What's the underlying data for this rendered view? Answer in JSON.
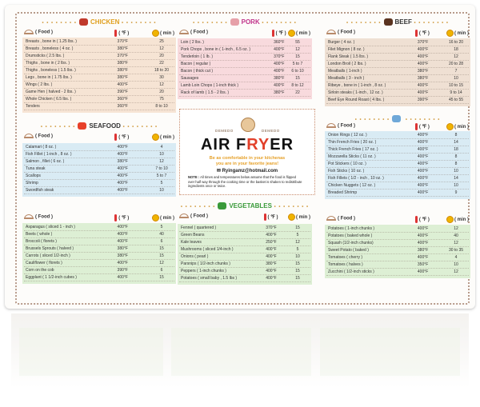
{
  "center": {
    "brand_left": "DEMEDO",
    "brand_right": "DEMEDO",
    "title_a": "AIR F",
    "title_b": "RY",
    "title_c": "ER",
    "slogan_1": "Be as comfortable in your kitchenas",
    "slogan_2": "you are in your favorite jeans!",
    "email": "Ryingamz@hotmail.com",
    "note_label": "NOTE :",
    "note": "All times and temperatures below assume that the food is flipped over half way through the cooking time or the basket is shaken to redistribute ingredients once or twice."
  },
  "headers": {
    "food": "( Food )",
    "temp": "( ℉ )",
    "min": "( min )"
  },
  "sections": [
    {
      "title": "CHICKEN",
      "color": "#e0a020",
      "bg": "#f6e4d4",
      "rows": [
        {
          "food": "Breasts , bone in ( 1.25 lbs. )",
          "temp": "370°F",
          "min": "25"
        },
        {
          "food": "Breasts , boneless ( 4 oz. )",
          "temp": "380°F",
          "min": "12"
        },
        {
          "food": "Drumsticks ( 2.5 lbs. )",
          "temp": "370°F",
          "min": "20"
        },
        {
          "food": "Thighs , bone in ( 2 lbs. )",
          "temp": "380°F",
          "min": "22"
        },
        {
          "food": "Thighs , boneless ( 1.5 lbs. )",
          "temp": "380°F",
          "min": "18 to 20"
        },
        {
          "food": "Legs , bone in ( 1.75 lbs. )",
          "temp": "380°F",
          "min": "30"
        },
        {
          "food": "Wings ( 2 lbs. )",
          "temp": "400°F",
          "min": "12"
        },
        {
          "food": "Game Hen ( halved - 2 lbs. )",
          "temp": "390°F",
          "min": "20"
        },
        {
          "food": "Whole Chicken ( 6.5 lbs. )",
          "temp": "360°F",
          "min": "75"
        },
        {
          "food": "Tenders",
          "temp": "360°F",
          "min": "8 to 10"
        }
      ]
    },
    {
      "title": "PORK",
      "color": "#c0338a",
      "bg": "#f8dadd",
      "rows": [
        {
          "food": "Loin ( 2 lbs. )",
          "temp": "360°F",
          "min": "55"
        },
        {
          "food": "Pork Chops , bone in ( 1-inch , 6.5 oz. )",
          "temp": "400°F",
          "min": "12"
        },
        {
          "food": "Tenderloin ( 1 lb. )",
          "temp": "370°F",
          "min": "15"
        },
        {
          "food": "Bacon ( regular )",
          "temp": "400°F",
          "min": "5 to 7"
        },
        {
          "food": "Bacon ( thick cut )",
          "temp": "400°F",
          "min": "6 to 10"
        },
        {
          "food": "Sausages",
          "temp": "380°F",
          "min": "15"
        },
        {
          "food": "Lamb Loin Chops ( 1-inch thick )",
          "temp": "400°F",
          "min": "8 to 12"
        },
        {
          "food": "Rack of lamb ( 1.5 - 2 lbs. )",
          "temp": "380°F",
          "min": "22"
        }
      ]
    },
    {
      "title": "BEEF",
      "color": "#333333",
      "bg": "#efe0d3",
      "rows": [
        {
          "food": "Burger ( 4 oz. )",
          "temp": "370°F",
          "min": "16 to 20"
        },
        {
          "food": "Filet Mignon ( 8 oz. )",
          "temp": "400°F",
          "min": "18"
        },
        {
          "food": "Flank Steak ( 1.5 lbs. )",
          "temp": "400°F",
          "min": "12"
        },
        {
          "food": "London Broil ( 2 lbs. )",
          "temp": "400°F",
          "min": "20 to 28"
        },
        {
          "food": "Meatballs ( 1-inch )",
          "temp": "380°F",
          "min": "7"
        },
        {
          "food": "Meatballs ( 3 - inch )",
          "temp": "380°F",
          "min": "10"
        },
        {
          "food": "Ribeye , bone in ( 1-inch , 8 oz. )",
          "temp": "400°F",
          "min": "10 to 15"
        },
        {
          "food": "Sirloin steaks ( 1-inch , 12 oz. )",
          "temp": "400°F",
          "min": "9 to 14"
        },
        {
          "food": "Beef Eye Round Roast ( 4 lbs. )",
          "temp": "390°F",
          "min": "45 to 55"
        }
      ]
    },
    {
      "title": "SEAFOOD",
      "color": "#333333",
      "bg": "#d9ebf4",
      "rows": [
        {
          "food": "Calamari ( 8 oz. )",
          "temp": "400°F",
          "min": "4"
        },
        {
          "food": "Fish Fillet ( 1-inch , 8 oz. )",
          "temp": "400°F",
          "min": "10"
        },
        {
          "food": "Salmon , fillet ( 6 oz. )",
          "temp": "380°F",
          "min": "12"
        },
        {
          "food": "Tuna steak",
          "temp": "400°F",
          "min": "7 to 10"
        },
        {
          "food": "Scallops",
          "temp": "400°F",
          "min": "5 to 7"
        },
        {
          "food": "Shrimp",
          "temp": "400°F",
          "min": "5"
        },
        {
          "food": "Swordfish steak",
          "temp": "400°F",
          "min": "10"
        }
      ]
    },
    {
      "title": "",
      "color": "#333333",
      "bg": "#d9ebf4",
      "rows": [
        {
          "food": "Onion Rings ( 12 oz. )",
          "temp": "400°F",
          "min": "8"
        },
        {
          "food": "Thin French Fries ( 20 oz. )",
          "temp": "400°F",
          "min": "14"
        },
        {
          "food": "Thick French Fries ( 17 oz. )",
          "temp": "400°F",
          "min": "18"
        },
        {
          "food": "Mozzarella Sticks ( 11 oz. )",
          "temp": "400°F",
          "min": "8"
        },
        {
          "food": "Pot Stickers ( 10 oz. )",
          "temp": "400°F",
          "min": "8"
        },
        {
          "food": "Fish Sticks ( 10 oz. )",
          "temp": "400°F",
          "min": "10"
        },
        {
          "food": "Fish Fillets ( 1/2 - inch , 10 oz. )",
          "temp": "400°F",
          "min": "14"
        },
        {
          "food": "Chicken Nuggets ( 12 oz. )",
          "temp": "400°F",
          "min": "10"
        },
        {
          "food": "Breaded Shrimp",
          "temp": "400°F",
          "min": "9"
        }
      ]
    },
    {
      "title": "",
      "color": "#3a9a3a",
      "bg": "#ddefd4",
      "rows": [
        {
          "food": "Asparagus ( sliced 1 - inch )",
          "temp": "400°F",
          "min": "5"
        },
        {
          "food": "Beets ( whole )",
          "temp": "400°F",
          "min": "40"
        },
        {
          "food": "Broccoli ( florets )",
          "temp": "400°F",
          "min": "6"
        },
        {
          "food": "Brussels Sprouts ( halved )",
          "temp": "380°F",
          "min": "15"
        },
        {
          "food": "Carrots ( sliced 1/2-inch )",
          "temp": "380°F",
          "min": "15"
        },
        {
          "food": "Cauliflower ( florets )",
          "temp": "400°F",
          "min": "12"
        },
        {
          "food": "Corn on the cob",
          "temp": "390°F",
          "min": "6"
        },
        {
          "food": "Eggplant ( 1 1/2-inch cubes )",
          "temp": "400°F",
          "min": "15"
        }
      ]
    },
    {
      "title": "VEGETABLES",
      "color": "#3a9a3a",
      "bg": "#ddefd4",
      "rows": [
        {
          "food": "Fennel ( quartered )",
          "temp": "370°F",
          "min": "15"
        },
        {
          "food": "Green Beans",
          "temp": "400°F",
          "min": "5"
        },
        {
          "food": "Kale leaves",
          "temp": "250°F",
          "min": "12"
        },
        {
          "food": "Mushrooms ( sliced 1/4-inch )",
          "temp": "400°F",
          "min": "5"
        },
        {
          "food": "Onions ( pearl )",
          "temp": "400°F",
          "min": "10"
        },
        {
          "food": "Parsnips ( 1/2-inch chunks )",
          "temp": "380°F",
          "min": "15"
        },
        {
          "food": "Peppers ( 1-inch chunks )",
          "temp": "400°F",
          "min": "15"
        },
        {
          "food": "Potatoes ( small baby , 1.5 lbs )",
          "temp": "400°F",
          "min": "15"
        }
      ]
    },
    {
      "title": "",
      "color": "#3a9a3a",
      "bg": "#ddefd4",
      "rows": [
        {
          "food": "Potatoes ( 1-inch chunks )",
          "temp": "400°F",
          "min": "12"
        },
        {
          "food": "Potatoes ( baked whole )",
          "temp": "400°F",
          "min": "40"
        },
        {
          "food": "Squash (1/2-inch chunks)",
          "temp": "400°F",
          "min": "12"
        },
        {
          "food": "Sweet Potato ( baked )",
          "temp": "380°F",
          "min": "30 to 35"
        },
        {
          "food": "Tomatoes ( cherry )",
          "temp": "400°F",
          "min": "4"
        },
        {
          "food": "Tomatoes ( halves )",
          "temp": "350°F",
          "min": "10"
        },
        {
          "food": "Zucchini ( 1/2-inch sticks )",
          "temp": "400°F",
          "min": "12"
        }
      ]
    }
  ]
}
